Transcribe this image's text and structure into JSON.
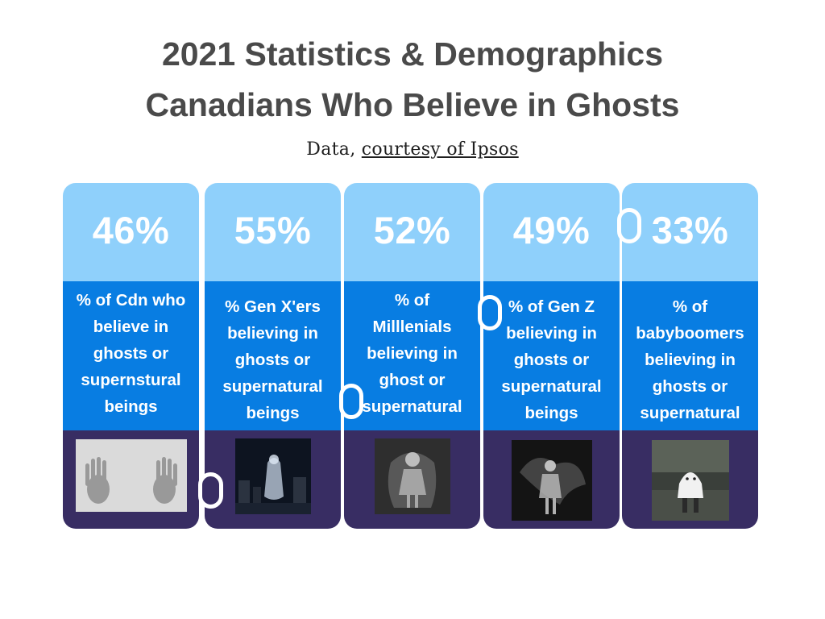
{
  "title_line1": "2021 Statistics & Demographics",
  "title_line2": "Canadians Who Believe in Ghosts",
  "subtitle": {
    "prefix": "Data, ",
    "source": "courtesy of Ipsos"
  },
  "chart_data": {
    "type": "bar",
    "categories": [
      "% of Cdn who believe in ghosts or supernstural beings",
      "% Gen X'ers believing in ghosts or supernatural beings",
      "% of Milllenials believing in ghost or supernatural",
      "% of Gen Z believing in ghosts or supernatural beings",
      "% of babyboomers believing in ghosts or supernatural"
    ],
    "values": [
      46,
      55,
      52,
      49,
      33
    ],
    "value_labels": [
      "46%",
      "55%",
      "52%",
      "49%",
      "33%"
    ],
    "colors": {
      "top": "#8fd0fb",
      "middle": "#087de2",
      "bottom": "#382d63",
      "title": "#4a4a4a"
    }
  },
  "panels": [
    {
      "percent": "46%",
      "lines": [
        "% of Cdn who",
        "believe in",
        "ghosts or",
        "supernstural",
        "beings"
      ],
      "image_icon": "ghost-hands-photo"
    },
    {
      "percent": "55%",
      "lines": [
        "% Gen X'ers",
        "believing in",
        "ghosts or",
        "supernatural",
        "beings"
      ],
      "image_icon": "ghost-cemetery-photo"
    },
    {
      "percent": "52%",
      "lines": [
        "% of",
        "Milllenials",
        "believing in",
        "ghost or",
        "supernatural"
      ],
      "image_icon": "ghost-girl-photo"
    },
    {
      "percent": "49%",
      "lines": [
        "% of Gen Z",
        "believing in",
        "ghosts or",
        "supernatural",
        "beings"
      ],
      "image_icon": "ghost-child-photo"
    },
    {
      "percent": "33%",
      "lines": [
        "% of",
        "babyboomers",
        "believing in",
        "ghosts or",
        "supernatural"
      ],
      "image_icon": "sheet-ghost-photo"
    }
  ]
}
